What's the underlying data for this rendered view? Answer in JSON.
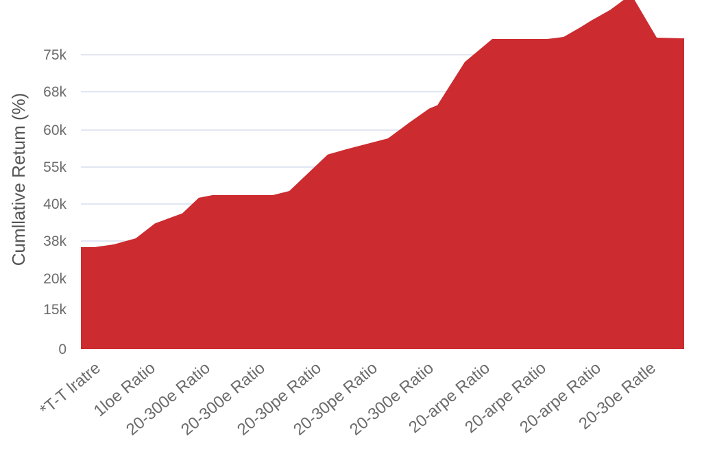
{
  "chart_data": {
    "type": "area",
    "title": "",
    "xlabel": "",
    "ylabel": "Cumllative Retum (%)",
    "y_tick_labels": [
      "0",
      "15k",
      "20k",
      "38k",
      "40k",
      "55k",
      "60k",
      "68k",
      "75k"
    ],
    "categories": [
      "*T-T lratre",
      "1loe Ratio",
      "20-300e Ratio",
      "20-300e Ratio",
      "20-30pe Ratio",
      "20-30pe Ratio",
      "20-300e Ratio",
      "20-arpe Ratio",
      "20-arpe Ratio",
      "20-arpe Ratio",
      "20-30e Ratle"
    ],
    "grid": true,
    "legend": "none",
    "color": "#cc2b2f",
    "series": [
      {
        "x": [
          0,
          0.25,
          0.6,
          1.0,
          1.35,
          1.85,
          2.15,
          2.4,
          3.5,
          3.8,
          4.5,
          4.85,
          5.6,
          6.0,
          6.35,
          6.5,
          7.0,
          7.5,
          8.0,
          8.5,
          8.8,
          9.1,
          9.3,
          9.65,
          9.9,
          10.05,
          10.5,
          11.0
        ],
        "y": [
          15.1,
          15.1,
          15.5,
          16.4,
          18.6,
          20.1,
          22.4,
          22.8,
          22.8,
          23.4,
          28.8,
          29.6,
          31.2,
          33.6,
          35.6,
          36.1,
          42.5,
          45.9,
          45.9,
          45.9,
          46.2,
          47.6,
          48.6,
          50.2,
          51.7,
          52.3,
          46.1,
          46.0
        ]
      }
    ]
  }
}
